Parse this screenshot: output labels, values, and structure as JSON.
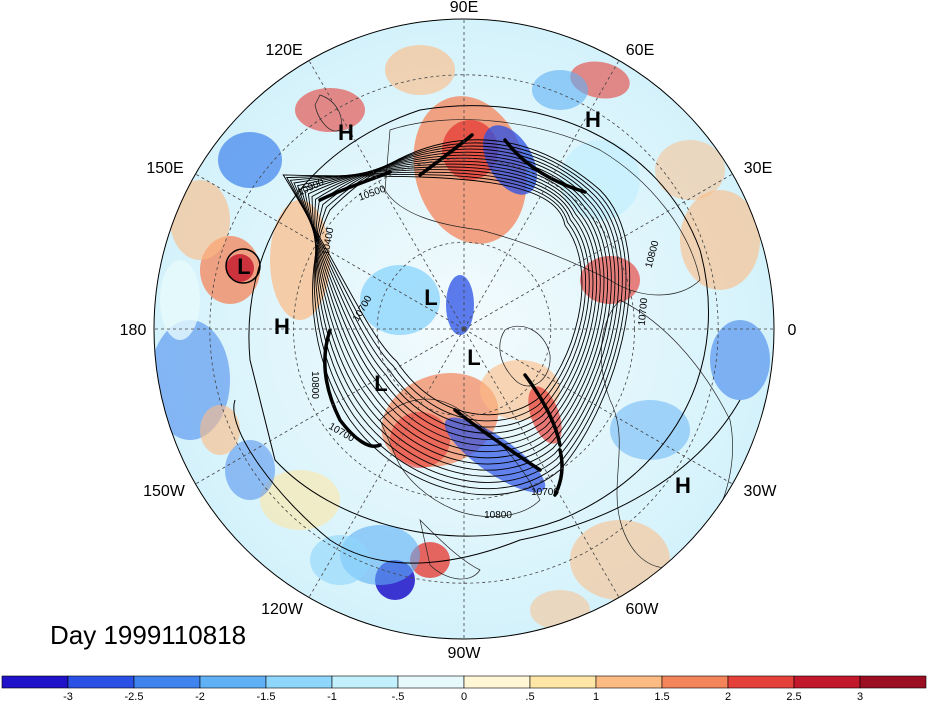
{
  "map": {
    "projection": "north-polar-stereographic",
    "longitude_labels": [
      "90E",
      "60E",
      "30E",
      "0",
      "30W",
      "60W",
      "90W",
      "120W",
      "150W",
      "180",
      "150E",
      "120E"
    ],
    "day_label": "Day 1999110818",
    "contour_labels": [
      "10900",
      "10500",
      "10400",
      "10800",
      "10700",
      "10800",
      "10700",
      "10800",
      "10700",
      "10700"
    ],
    "pressure_centers": [
      "H",
      "H",
      "L",
      "H",
      "L",
      "L",
      "L",
      "H"
    ]
  },
  "colorbar": {
    "tick_labels": [
      "-3",
      "-2.5",
      "-2",
      "-1.5",
      "-1",
      "-.5",
      "0",
      ".5",
      "1",
      "1.5",
      "2",
      "2.5",
      "3"
    ],
    "colors": [
      "#1f12c8",
      "#2a50e6",
      "#3f83ee",
      "#5fb0f5",
      "#8ed6fb",
      "#c2f0fd",
      "#e6fafd",
      "#fff6d6",
      "#fee6a6",
      "#fdbb84",
      "#f4845a",
      "#e6403a",
      "#c3172b",
      "#9b0e21"
    ]
  }
}
